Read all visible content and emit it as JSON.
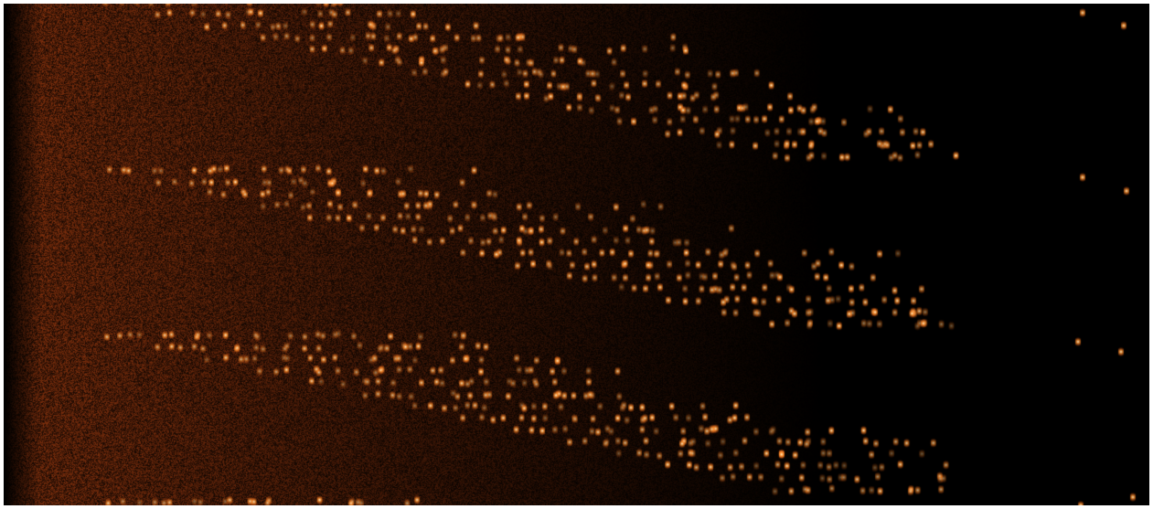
{
  "image": {
    "kind": "spectral-diagnostic-image",
    "background_color": "#000000",
    "glow_color": "#ff7a1a",
    "highlight_color": "#fff1c8",
    "noise_color": "#7a2d08",
    "bands": 4
  }
}
